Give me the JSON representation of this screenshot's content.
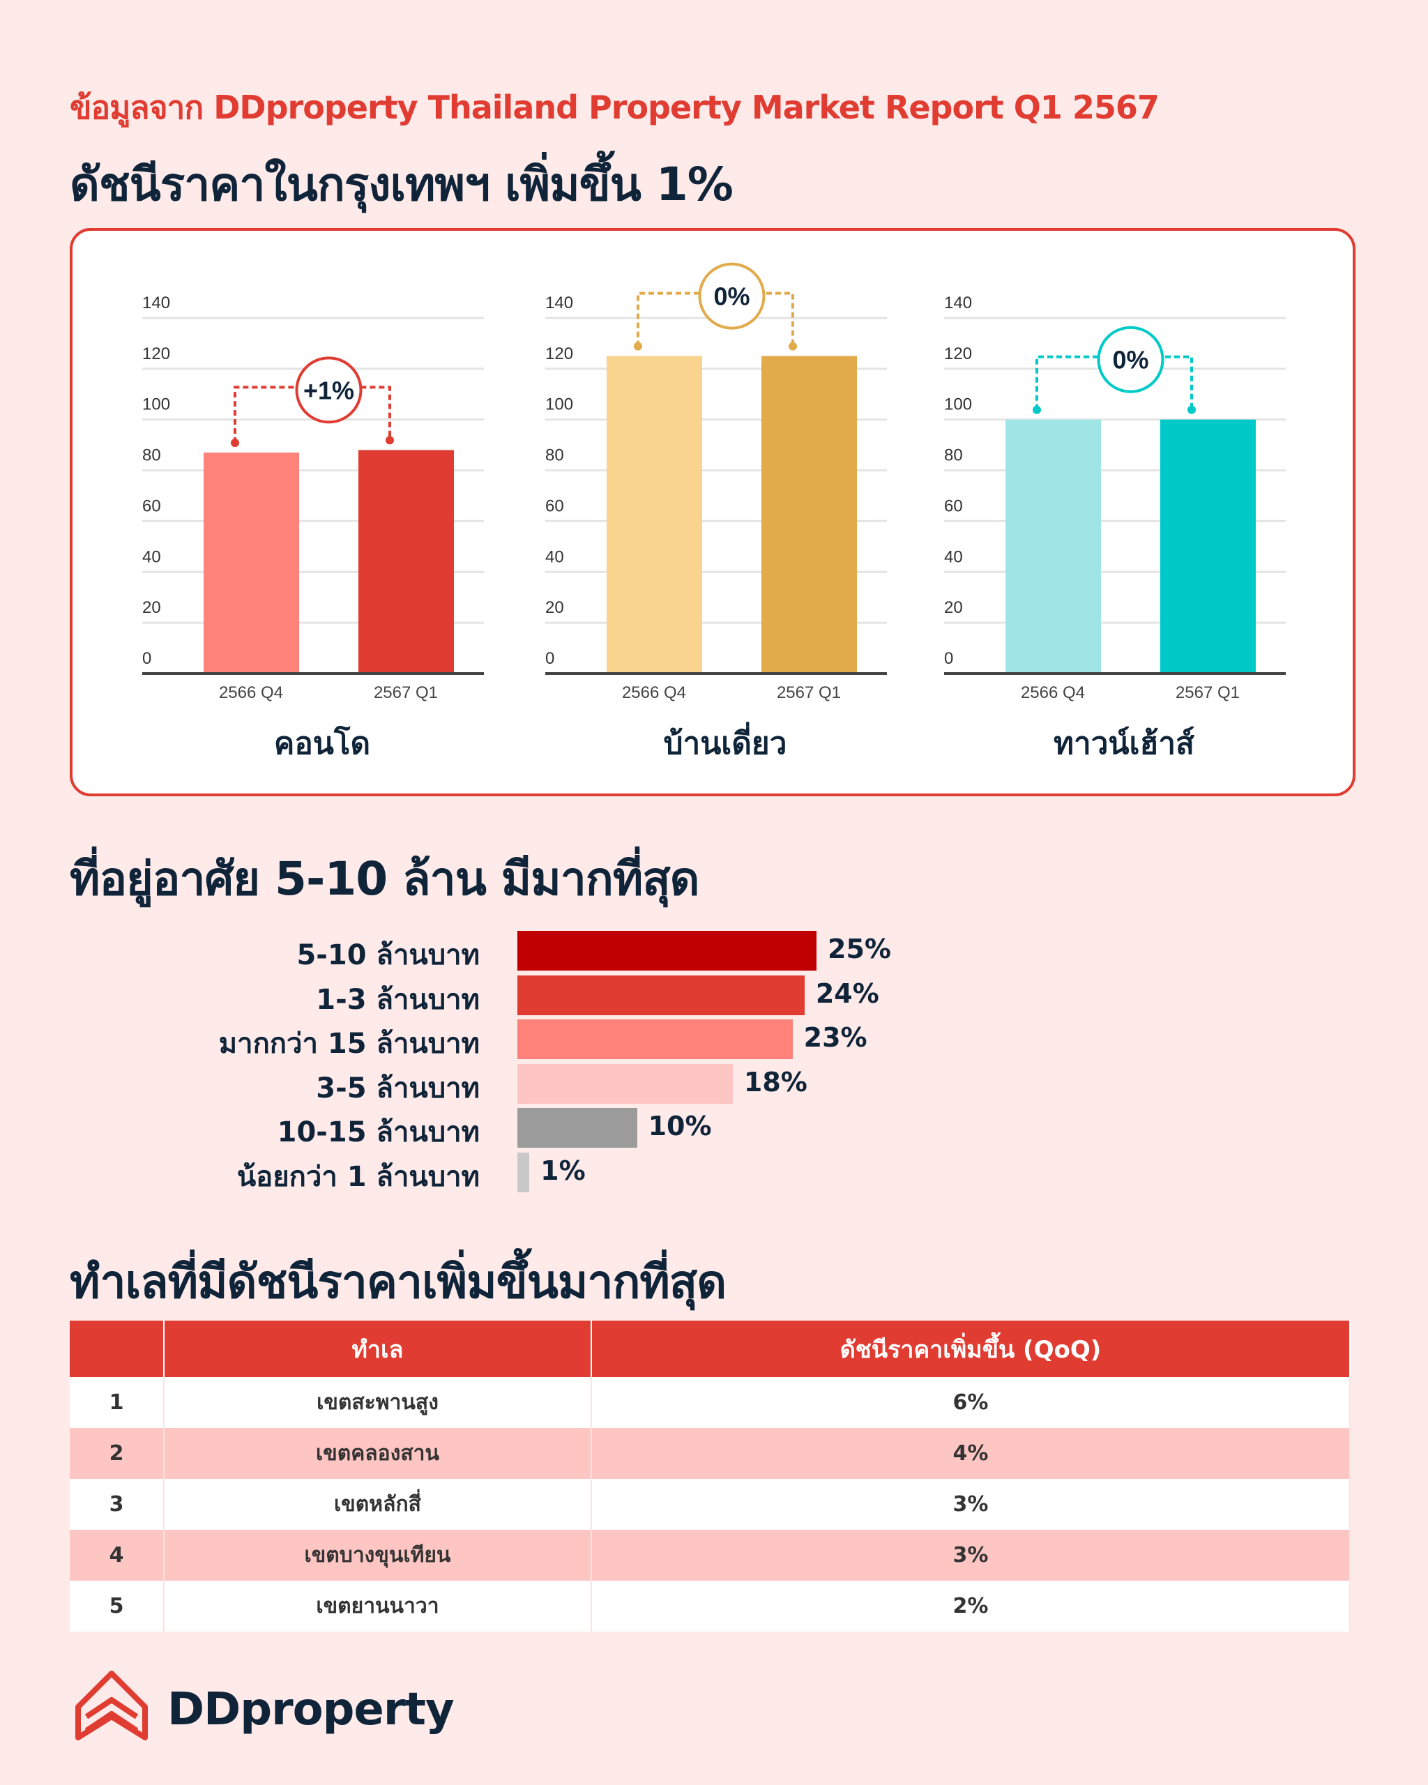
{
  "source_prefix": "ข้อมูลจาก",
  "source_name": "DDproperty Thailand Property Market Report Q1 2567",
  "section1_title": "ดัชนีราคาในกรุงเทพฯ เพิ่มขึ้น 1%",
  "section2_title": "ที่อยู่อาศัย 5-10 ล้าน มีมากที่สุด",
  "section3_title": "ทำเลที่มีดัชนีราคาเพิ่มขึ้นมากที่สุด",
  "chart_data": [
    {
      "type": "bar",
      "title": "คอนโด",
      "categories": [
        "2566 Q4",
        "2567 Q1"
      ],
      "values": [
        87,
        88
      ],
      "ylim": [
        0,
        140
      ],
      "yticks": [
        0,
        20,
        40,
        60,
        80,
        100,
        120,
        140
      ],
      "grid": true,
      "change_label": "+1%",
      "colors": [
        "#ff837a",
        "#e03c31"
      ]
    },
    {
      "type": "bar",
      "title": "บ้านเดี่ยว",
      "categories": [
        "2566 Q4",
        "2567 Q1"
      ],
      "values": [
        125,
        125
      ],
      "ylim": [
        0,
        140
      ],
      "yticks": [
        0,
        20,
        40,
        60,
        80,
        100,
        120,
        140
      ],
      "grid": true,
      "change_label": "0%",
      "colors": [
        "#f8d48e",
        "#e1aa4a"
      ]
    },
    {
      "type": "bar",
      "title": "ทาวน์เฮ้าส์",
      "categories": [
        "2566 Q4",
        "2567 Q1"
      ],
      "values": [
        100,
        100
      ],
      "ylim": [
        0,
        140
      ],
      "yticks": [
        0,
        20,
        40,
        60,
        80,
        100,
        120,
        140
      ],
      "grid": true,
      "change_label": "0%",
      "colors": [
        "#a0e5e6",
        "#00cac8"
      ]
    },
    {
      "type": "bar",
      "orientation": "horizontal",
      "categories": [
        "5-10 ล้านบาท",
        "1-3 ล้านบาท",
        "มากกว่า 15 ล้านบาท",
        "3-5 ล้านบาท",
        "10-15 ล้านบาท",
        "น้อยกว่า 1 ล้านบาท"
      ],
      "values": [
        25,
        24,
        23,
        18,
        10,
        1
      ],
      "labels": [
        "25%",
        "24%",
        "23%",
        "18%",
        "10%",
        "1%"
      ],
      "colors": [
        "#c00000",
        "#e03c31",
        "#ff837a",
        "#fec6c3",
        "#9b9b9b",
        "#c8c8c8"
      ]
    }
  ],
  "table": {
    "headers": [
      "",
      "ทำเล",
      "ดัชนีราคาเพิ่มขึ้น (QoQ)"
    ],
    "rows": [
      [
        "1",
        "เขตสะพานสูง",
        "6%"
      ],
      [
        "2",
        "เขตคลองสาน",
        "4%"
      ],
      [
        "3",
        "เขตหลักสี่",
        "3%"
      ],
      [
        "4",
        "เขตบางขุนเทียน",
        "3%"
      ],
      [
        "5",
        "เขตยานนาวา",
        "2%"
      ]
    ]
  },
  "logo_text": "DDproperty",
  "colors": {
    "accent": "#e03c31",
    "dark": "#0f2438",
    "background": "#ffeaea"
  }
}
